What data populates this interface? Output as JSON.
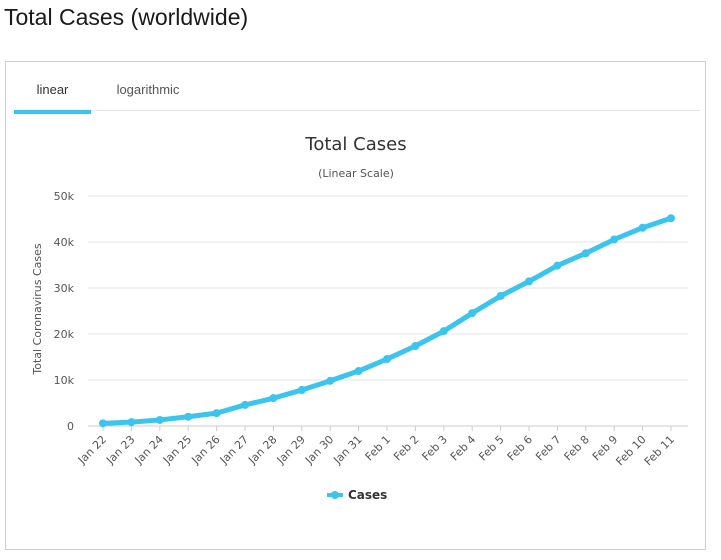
{
  "page": {
    "heading": "Total Cases (worldwide)"
  },
  "tabs": [
    {
      "label": "linear",
      "active": true
    },
    {
      "label": "logarithmic",
      "active": false
    }
  ],
  "colors": {
    "series": "#3bc4ee",
    "grid": "#e6e6e6",
    "tab_accent": "#3bc4ee"
  },
  "chart_data": {
    "type": "line",
    "title": "Total Cases",
    "subtitle": "(Linear Scale)",
    "xlabel": "",
    "ylabel": "Total Coronavirus Cases",
    "ylim": [
      0,
      50000
    ],
    "yticks": [
      {
        "value": 0,
        "label": "0"
      },
      {
        "value": 10000,
        "label": "10k"
      },
      {
        "value": 20000,
        "label": "20k"
      },
      {
        "value": 30000,
        "label": "30k"
      },
      {
        "value": 40000,
        "label": "40k"
      },
      {
        "value": 50000,
        "label": "50k"
      }
    ],
    "categories": [
      "Jan 22",
      "Jan 23",
      "Jan 24",
      "Jan 25",
      "Jan 26",
      "Jan 27",
      "Jan 28",
      "Jan 29",
      "Jan 30",
      "Jan 31",
      "Feb 1",
      "Feb 2",
      "Feb 3",
      "Feb 4",
      "Feb 5",
      "Feb 6",
      "Feb 7",
      "Feb 8",
      "Feb 9",
      "Feb 10",
      "Feb 11"
    ],
    "series": [
      {
        "name": "Cases",
        "values": [
          580,
          845,
          1317,
          2015,
          2800,
          4581,
          6058,
          7813,
          9823,
          11950,
          14553,
          17391,
          20630,
          24545,
          28266,
          31439,
          34876,
          37552,
          40553,
          43099,
          45170
        ]
      }
    ],
    "grid": true,
    "legend": "bottom-center"
  }
}
